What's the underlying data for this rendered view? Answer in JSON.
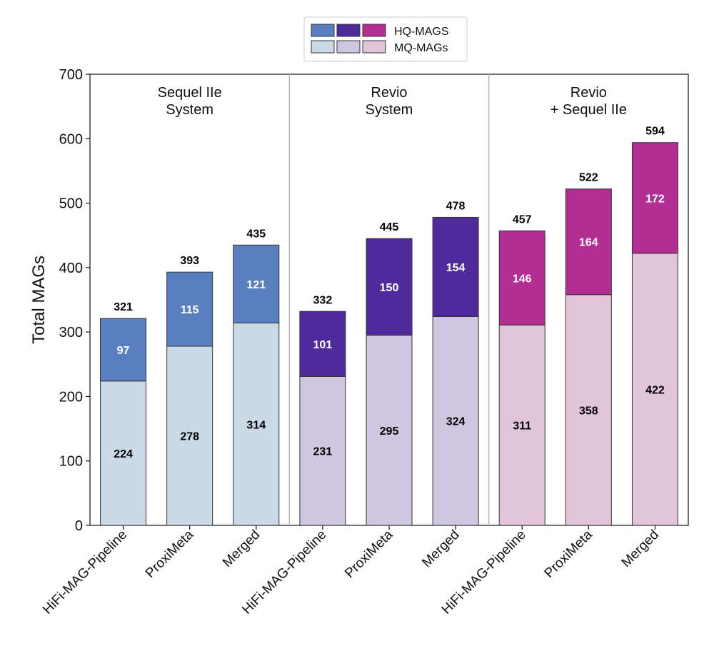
{
  "chart_data": {
    "type": "bar",
    "stacked": true,
    "ylabel": "Total MAGs",
    "ylim": [
      0,
      700
    ],
    "yticks": [
      0,
      100,
      200,
      300,
      400,
      500,
      600,
      700
    ],
    "legend": {
      "placement": "top-center",
      "entries": [
        {
          "label": "HQ-MAGS",
          "colors": [
            "#5a7fbf",
            "#4e2a9a",
            "#b22e93"
          ]
        },
        {
          "label": "MQ-MAGs",
          "colors": [
            "#cbd9e6",
            "#cfc6e0",
            "#e2c4da"
          ]
        }
      ]
    },
    "groups": [
      {
        "title": [
          "Sequel IIe",
          "System"
        ],
        "hq_color": "#5a7fbf",
        "mq_color": "#cbd9e6",
        "bars": [
          {
            "category": "HiFi-MAG-Pipeline",
            "mq": 224,
            "hq": 97,
            "total": 321
          },
          {
            "category": "ProxiMeta",
            "mq": 278,
            "hq": 115,
            "total": 393
          },
          {
            "category": "Merged",
            "mq": 314,
            "hq": 121,
            "total": 435
          }
        ]
      },
      {
        "title": [
          "Revio",
          "System"
        ],
        "hq_color": "#4e2a9a",
        "mq_color": "#cfc6e0",
        "bars": [
          {
            "category": "HiFi-MAG-Pipeline",
            "mq": 231,
            "hq": 101,
            "total": 332
          },
          {
            "category": "ProxiMeta",
            "mq": 295,
            "hq": 150,
            "total": 445
          },
          {
            "category": "Merged",
            "mq": 324,
            "hq": 154,
            "total": 478
          }
        ]
      },
      {
        "title": [
          "Revio",
          "+ Sequel IIe"
        ],
        "hq_color": "#b22e93",
        "mq_color": "#e2c4da",
        "bars": [
          {
            "category": "HiFi-MAG-Pipeline",
            "mq": 311,
            "hq": 146,
            "total": 457
          },
          {
            "category": "ProxiMeta",
            "mq": 358,
            "hq": 164,
            "total": 522
          },
          {
            "category": "Merged",
            "mq": 422,
            "hq": 172,
            "total": 594
          }
        ]
      }
    ]
  }
}
